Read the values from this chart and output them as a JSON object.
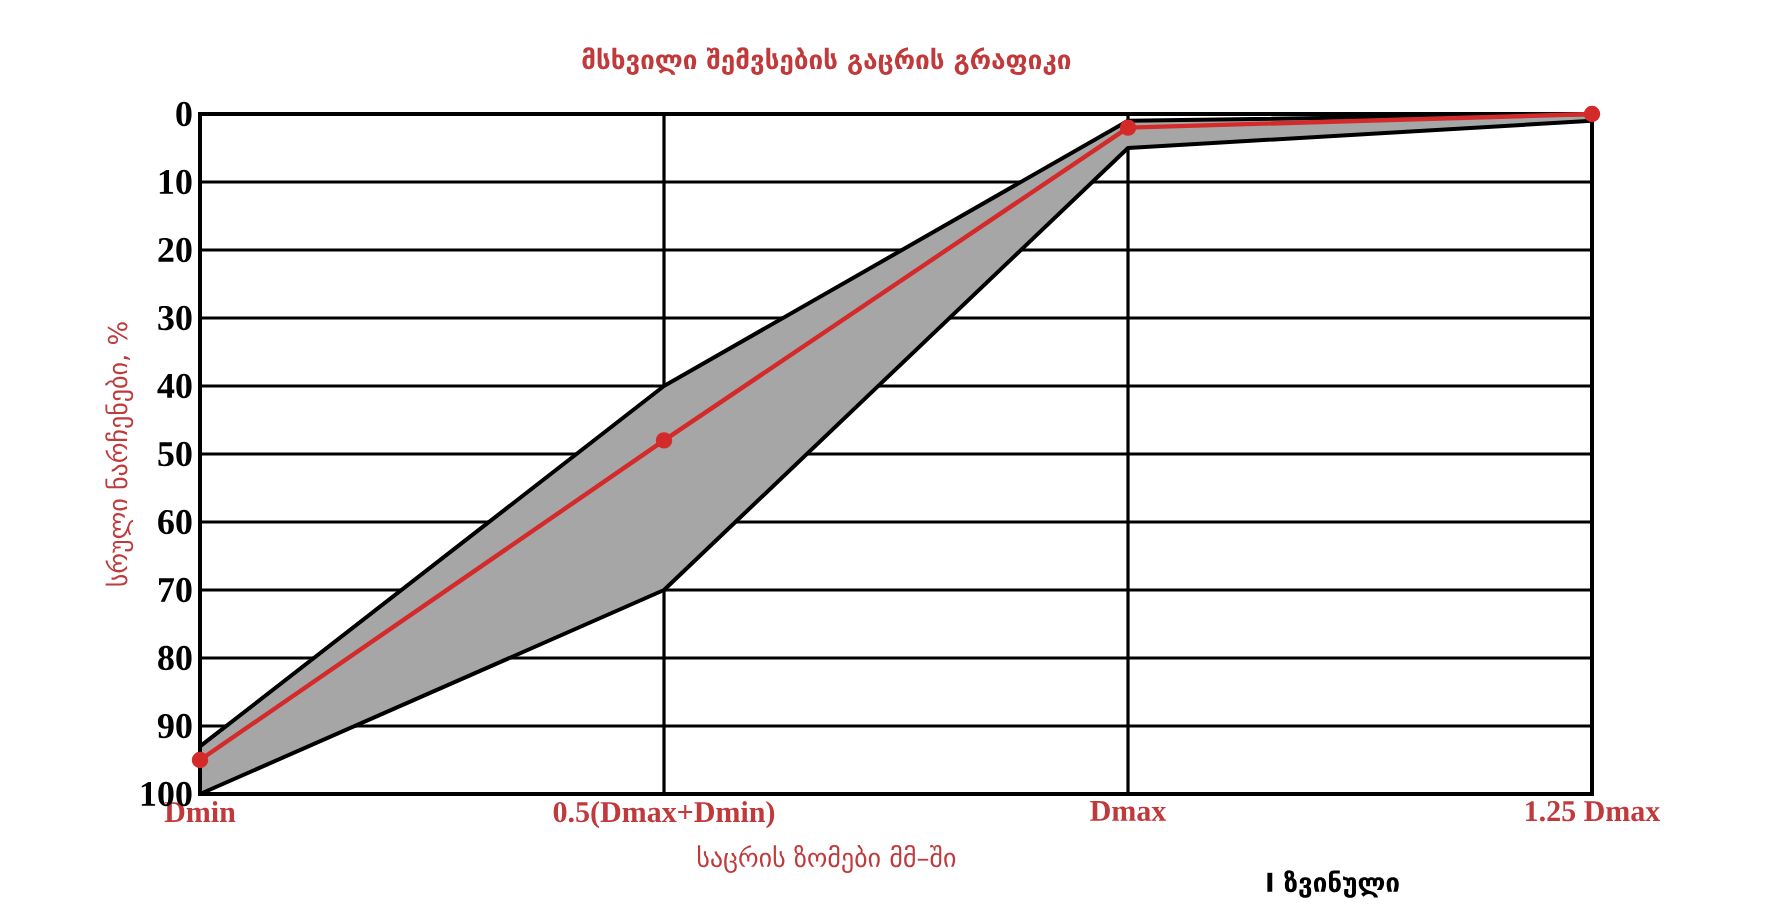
{
  "chart_data": {
    "type": "line",
    "title": "მსხვილი შემვსების გაცრის გრაფიკი",
    "xlabel": "საცრის ზომები მმ–ში",
    "ylabel": "სრული ნარჩენები, %",
    "annotations": [
      "I ზვინული"
    ],
    "categories": [
      "Dmin",
      "0.5(Dmax+Dmin)",
      "Dmax",
      "1.25  Dmax"
    ],
    "series": [
      {
        "color": "#d42a2a",
        "values": [
          95,
          48,
          2,
          0
        ],
        "lower": [
          93,
          40,
          1,
          0
        ],
        "upper": [
          100,
          70,
          5,
          1
        ]
      }
    ],
    "ylim": [
      100,
      0
    ],
    "yticks": [
      0,
      10,
      20,
      30,
      40,
      50,
      60,
      70,
      80,
      90,
      100
    ],
    "grid": true,
    "marker": "circle",
    "line_style": "solid"
  }
}
